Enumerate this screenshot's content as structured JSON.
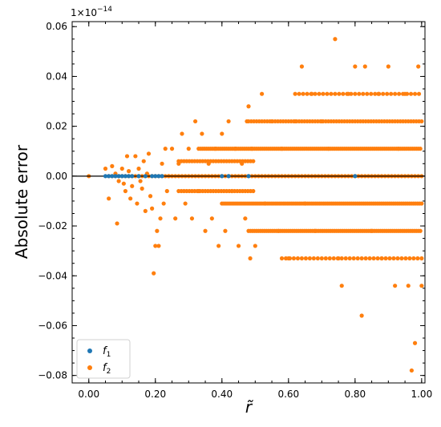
{
  "chart_data": {
    "type": "scatter",
    "title": "",
    "xlabel": "r̃",
    "ylabel": "Absolute error",
    "y_scale_label": "1×10^−14",
    "y_scale_base": "1×10",
    "y_scale_exp": "−14",
    "xlim": [
      -0.05,
      1.01
    ],
    "ylim": [
      -0.083,
      0.062
    ],
    "xticks": [
      0.0,
      0.2,
      0.4,
      0.6,
      0.8,
      1.0
    ],
    "xtick_labels": [
      "0.00",
      "0.20",
      "0.40",
      "0.60",
      "0.80",
      "1.00"
    ],
    "yticks": [
      -0.08,
      -0.06,
      -0.04,
      -0.02,
      0.0,
      0.02,
      0.04,
      0.06
    ],
    "ytick_labels": [
      "−0.08",
      "−0.06",
      "−0.04",
      "−0.02",
      "0.00",
      "0.02",
      "0.04",
      "0.06"
    ],
    "grid": false,
    "legend": {
      "position": "lower-left"
    },
    "reference_line": {
      "y": 0.0,
      "color": "#000000"
    },
    "colors": {
      "f1": "#1f77b4",
      "f2": "#ff7f0e"
    },
    "series": [
      {
        "key": "f1",
        "name": "f",
        "subscript": "1",
        "color": "#1f77b4",
        "points": [
          [
            0.05,
            0
          ],
          [
            0.06,
            0
          ],
          [
            0.07,
            0
          ],
          [
            0.08,
            0
          ],
          [
            0.09,
            0
          ],
          [
            0.1,
            0
          ],
          [
            0.11,
            0
          ],
          [
            0.12,
            0
          ],
          [
            0.13,
            0
          ],
          [
            0.15,
            0
          ],
          [
            0.17,
            0
          ],
          [
            0.19,
            0
          ],
          [
            0.2,
            0
          ],
          [
            0.21,
            0
          ],
          [
            0.22,
            0
          ],
          [
            0.4,
            0
          ],
          [
            0.42,
            0
          ],
          [
            0.48,
            0
          ],
          [
            0.8,
            0
          ]
        ]
      },
      {
        "key": "f2",
        "name": "f",
        "subscript": "2",
        "color": "#ff7f0e",
        "points": [
          [
            0.0,
            0.0
          ],
          [
            0.05,
            0.003
          ],
          [
            0.06,
            -0.009
          ],
          [
            0.07,
            0.004
          ],
          [
            0.08,
            0.001
          ],
          [
            0.085,
            -0.019
          ],
          [
            0.09,
            -0.002
          ],
          [
            0.1,
            0.003
          ],
          [
            0.105,
            -0.003
          ],
          [
            0.11,
            -0.006
          ],
          [
            0.115,
            0.008
          ],
          [
            0.12,
            0.002
          ],
          [
            0.125,
            -0.009
          ],
          [
            0.13,
            -0.004
          ],
          [
            0.14,
            0.008
          ],
          [
            0.145,
            -0.011
          ],
          [
            0.15,
            0.003
          ],
          [
            0.155,
            -0.002
          ],
          [
            0.16,
            -0.005
          ],
          [
            0.165,
            0.006
          ],
          [
            0.17,
            -0.014
          ],
          [
            0.175,
            0.001
          ],
          [
            0.18,
            0.009
          ],
          [
            0.185,
            -0.008
          ],
          [
            0.19,
            -0.013
          ],
          [
            0.195,
            -0.039
          ],
          [
            0.2,
            -0.028
          ],
          [
            0.205,
            -0.022
          ],
          [
            0.21,
            -0.028
          ],
          [
            0.215,
            -0.017
          ],
          [
            0.22,
            0.005
          ],
          [
            0.225,
            -0.011
          ],
          [
            0.23,
            0.011
          ],
          [
            0.235,
            -0.006
          ],
          [
            0.24,
            0.0
          ],
          [
            0.25,
            0.011
          ],
          [
            0.26,
            -0.017
          ],
          [
            0.27,
            0.005
          ],
          [
            0.28,
            0.017
          ],
          [
            0.29,
            -0.011
          ],
          [
            0.3,
            0.011
          ],
          [
            0.31,
            -0.017
          ],
          [
            0.32,
            0.022
          ],
          [
            0.33,
            -0.006
          ],
          [
            0.34,
            0.017
          ],
          [
            0.35,
            -0.022
          ],
          [
            0.36,
            0.005
          ],
          [
            0.37,
            -0.017
          ],
          [
            0.38,
            0.011
          ],
          [
            0.39,
            -0.028
          ],
          [
            0.4,
            0.017
          ],
          [
            0.41,
            -0.022
          ],
          [
            0.42,
            0.022
          ],
          [
            0.43,
            -0.006
          ],
          [
            0.44,
            0.011
          ],
          [
            0.45,
            -0.028
          ],
          [
            0.46,
            0.005
          ],
          [
            0.47,
            -0.017
          ],
          [
            0.475,
            0.022
          ],
          [
            0.48,
            0.028
          ],
          [
            0.485,
            -0.033
          ],
          [
            0.49,
            0.011
          ],
          [
            0.5,
            -0.028
          ],
          [
            0.52,
            0.033
          ],
          [
            0.53,
            -0.011
          ],
          [
            0.55,
            0.022
          ],
          [
            0.57,
            -0.022
          ],
          [
            0.58,
            0.011
          ],
          [
            0.6,
            -0.033
          ],
          [
            0.62,
            0.022
          ],
          [
            0.64,
            0.044
          ],
          [
            0.65,
            -0.011
          ],
          [
            0.67,
            0.033
          ],
          [
            0.68,
            -0.022
          ],
          [
            0.7,
            0.022
          ],
          [
            0.72,
            0.011
          ],
          [
            0.74,
            0.055
          ],
          [
            0.75,
            -0.033
          ],
          [
            0.76,
            -0.044
          ],
          [
            0.78,
            0.033
          ],
          [
            0.8,
            0.044
          ],
          [
            0.82,
            -0.056
          ],
          [
            0.83,
            0.044
          ],
          [
            0.85,
            -0.022
          ],
          [
            0.87,
            0.033
          ],
          [
            0.88,
            -0.033
          ],
          [
            0.9,
            0.044
          ],
          [
            0.92,
            -0.044
          ],
          [
            0.93,
            0.011
          ],
          [
            0.95,
            0.033
          ],
          [
            0.96,
            -0.044
          ],
          [
            0.97,
            -0.078
          ],
          [
            0.98,
            -0.067
          ],
          [
            0.99,
            0.044
          ],
          [
            1.0,
            -0.044
          ]
        ],
        "bands": [
          {
            "y": 0.011,
            "x_from": 0.33,
            "x_to": 1.0,
            "step": 0.006
          },
          {
            "y": -0.011,
            "x_from": 0.4,
            "x_to": 1.0,
            "step": 0.006
          },
          {
            "y": 0.022,
            "x_from": 0.48,
            "x_to": 1.0,
            "step": 0.008
          },
          {
            "y": -0.022,
            "x_from": 0.48,
            "x_to": 1.0,
            "step": 0.006
          },
          {
            "y": 0.033,
            "x_from": 0.62,
            "x_to": 1.0,
            "step": 0.012
          },
          {
            "y": -0.033,
            "x_from": 0.58,
            "x_to": 1.0,
            "step": 0.012
          },
          {
            "y": 0.006,
            "x_from": 0.27,
            "x_to": 0.5,
            "step": 0.008
          },
          {
            "y": -0.006,
            "x_from": 0.27,
            "x_to": 0.5,
            "step": 0.008
          },
          {
            "y": 0.0,
            "x_from": 0.06,
            "x_to": 1.0,
            "step": 0.01
          }
        ]
      }
    ]
  }
}
